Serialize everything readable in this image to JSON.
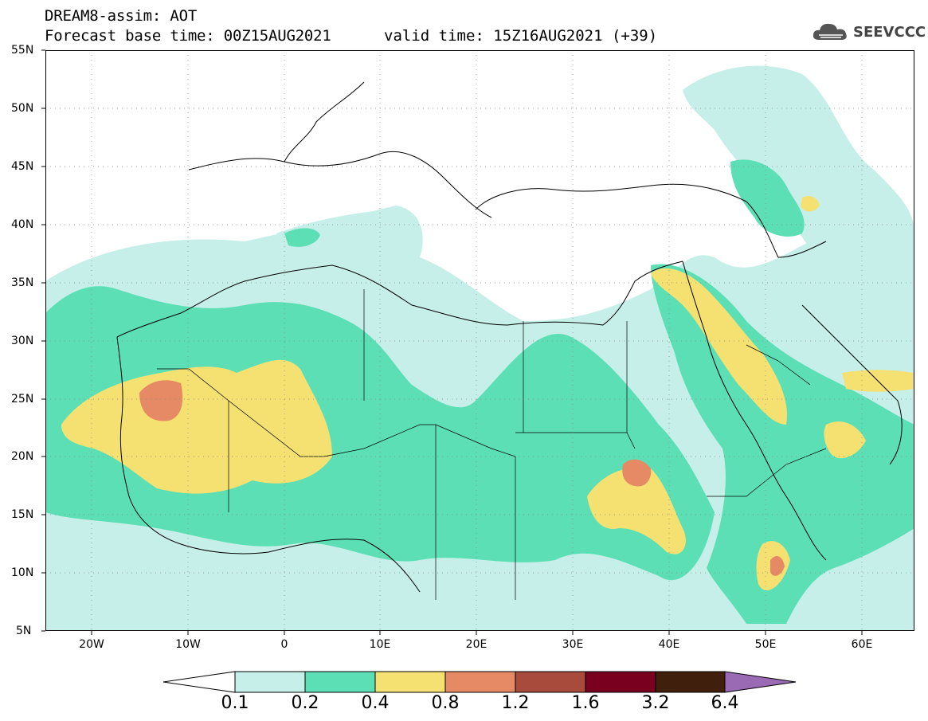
{
  "header": {
    "title": "DREAM8-assim: AOT",
    "forecast_base": "Forecast base time: 00Z15AUG2021",
    "valid_time": "valid time: 15Z16AUG2021 (+39)"
  },
  "logo": {
    "icon": "cloud-icon",
    "text": "SEEVCCC"
  },
  "map": {
    "lat_labels": [
      "55N",
      "50N",
      "45N",
      "40N",
      "35N",
      "30N",
      "25N",
      "20N",
      "15N",
      "10N",
      "5N"
    ],
    "lon_labels": [
      "20W",
      "10W",
      "0",
      "10E",
      "20E",
      "30E",
      "40E",
      "50E",
      "60E"
    ],
    "extent": {
      "lon": [
        -25,
        65
      ],
      "lat": [
        5,
        55
      ]
    },
    "field": "AOT",
    "grid": "dotted"
  },
  "colorbar": {
    "labels": [
      "0.1",
      "0.2",
      "0.4",
      "0.8",
      "1.2",
      "1.6",
      "3.2",
      "6.4"
    ],
    "colors": [
      "#ffffff",
      "#c5efe8",
      "#5ddfb5",
      "#f5e172",
      "#e68a66",
      "#a84a3c",
      "#7a0020",
      "#40200c",
      "#9b6ab5"
    ]
  }
}
